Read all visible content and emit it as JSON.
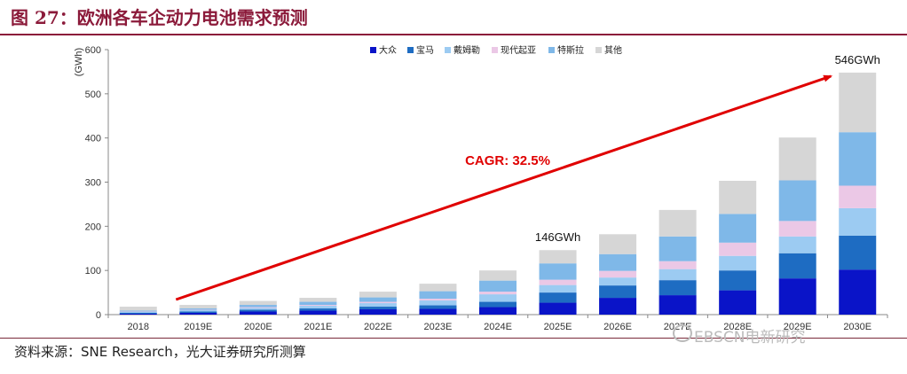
{
  "header": {
    "title": "图 27：欧洲各车企动力电池需求预测"
  },
  "footer": {
    "source": "资料来源：SNE Research，光大证券研究所测算",
    "watermark": "EBSCN电新研究"
  },
  "chart_data": {
    "type": "bar",
    "stacked": true,
    "ylabel": "(GWh)",
    "ylim": [
      0,
      600
    ],
    "yticks": [
      0,
      100,
      200,
      300,
      400,
      500,
      600
    ],
    "categories": [
      "2018",
      "2019E",
      "2020E",
      "2021E",
      "2022E",
      "2023E",
      "2024E",
      "2025E",
      "2026E",
      "2027E",
      "2028E",
      "2029E",
      "2030E"
    ],
    "series": [
      {
        "name": "大众",
        "color": "#0a14c8",
        "values": [
          2,
          4,
          7,
          9,
          12,
          13,
          17,
          27,
          38,
          44,
          55,
          82,
          102
        ]
      },
      {
        "name": "宝马",
        "color": "#1e6cc2",
        "values": [
          2,
          3,
          4,
          5,
          6,
          8,
          12,
          23,
          28,
          34,
          45,
          57,
          77
        ]
      },
      {
        "name": "戴姆勒",
        "color": "#9ccbf2",
        "values": [
          2,
          3,
          4,
          6,
          8,
          11,
          17,
          17,
          18,
          25,
          33,
          38,
          62
        ]
      },
      {
        "name": "现代起亚",
        "color": "#ebc8e6",
        "values": [
          1,
          1,
          2,
          2,
          3,
          4,
          6,
          12,
          15,
          18,
          30,
          35,
          51
        ]
      },
      {
        "name": "特斯拉",
        "color": "#7fb8e8",
        "values": [
          2,
          3,
          5,
          7,
          10,
          17,
          25,
          37,
          38,
          56,
          65,
          92,
          121
        ]
      },
      {
        "name": "其他",
        "color": "#d6d6d6",
        "values": [
          9,
          8,
          9,
          9,
          13,
          17,
          23,
          30,
          45,
          60,
          75,
          97,
          135
        ]
      }
    ],
    "annotations": [
      {
        "text": "146GWh",
        "category": "2025E"
      },
      {
        "text": "546GWh",
        "category": "2030E"
      },
      {
        "text": "CAGR: 32.5%",
        "kind": "trend-label"
      }
    ]
  }
}
